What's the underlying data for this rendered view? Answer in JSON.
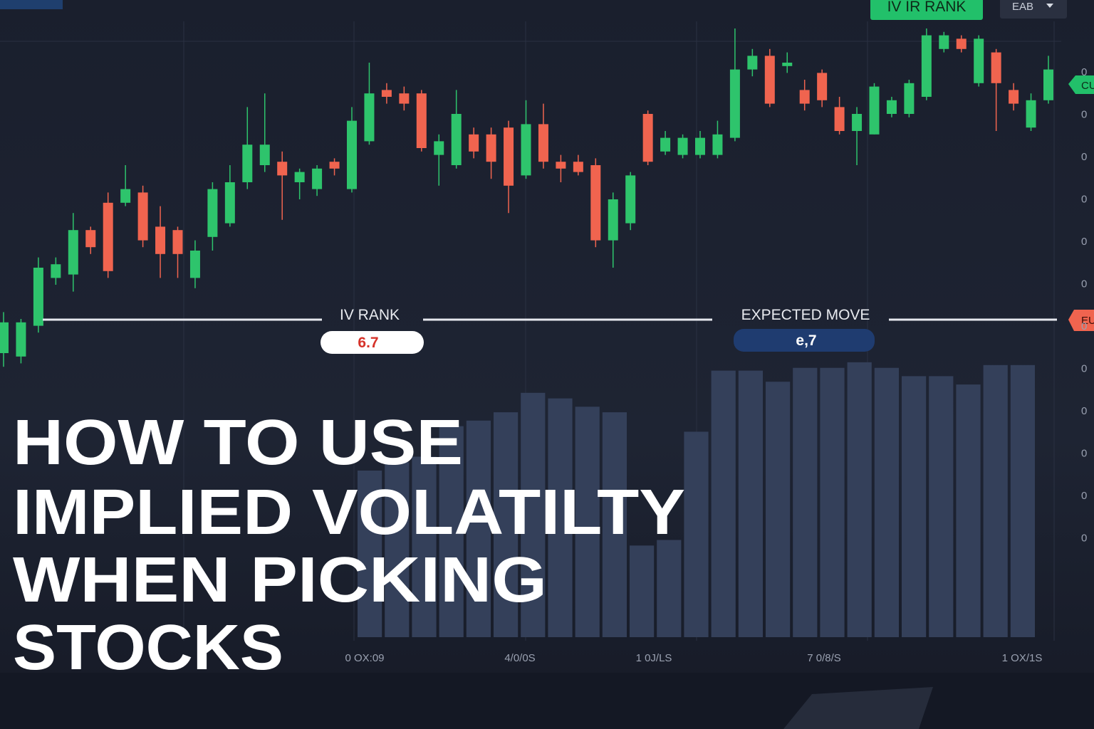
{
  "header": {
    "button": "IV IR RANK",
    "dropdown": "EAB"
  },
  "chart_data": [
    {
      "type": "candlestick",
      "up_color": "#2ec46c",
      "down_color": "#f0644f",
      "ylim": [
        0,
        100
      ],
      "open": [
        5,
        4,
        13,
        27,
        28,
        41,
        49,
        49,
        52,
        42,
        41,
        27,
        39,
        43,
        55,
        60,
        61,
        55,
        53,
        61,
        53,
        67,
        82,
        81,
        81,
        63,
        60,
        69,
        69,
        71,
        57,
        72,
        61,
        61,
        60,
        38,
        43,
        75,
        64,
        63,
        63,
        63,
        68,
        88,
        92,
        89,
        82,
        87,
        77,
        70,
        69,
        75,
        75,
        80,
        94,
        97,
        84,
        93,
        82,
        71,
        79
      ],
      "high": [
        17,
        15,
        33,
        33,
        46,
        42,
        52,
        60,
        54,
        48,
        42,
        38,
        55,
        60,
        77,
        81,
        64,
        59,
        60,
        62,
        77,
        90,
        84,
        83,
        82,
        69,
        82,
        71,
        71,
        73,
        79,
        78,
        63,
        63,
        62,
        52,
        58,
        76,
        70,
        69,
        70,
        73,
        100,
        94,
        94,
        93,
        85,
        88,
        80,
        77,
        84,
        80,
        85,
        100,
        99,
        98,
        98,
        94,
        84,
        81,
        92
      ],
      "low": [
        1,
        2,
        11,
        25,
        23,
        34,
        27,
        48,
        36,
        27,
        27,
        24,
        35,
        42,
        53,
        58,
        44,
        50,
        51,
        57,
        52,
        66,
        78,
        76,
        64,
        54,
        59,
        62,
        56,
        46,
        56,
        59,
        55,
        57,
        36,
        30,
        41,
        60,
        63,
        62,
        62,
        62,
        67,
        86,
        77,
        87,
        76,
        77,
        69,
        60,
        69,
        74,
        74,
        79,
        93,
        93,
        83,
        70,
        76,
        70,
        78
      ],
      "close": [
        14,
        14,
        30,
        31,
        41,
        36,
        29,
        53,
        38,
        34,
        34,
        35,
        53,
        55,
        66,
        66,
        57,
        58,
        59,
        59,
        73,
        81,
        80,
        78,
        65,
        67,
        75,
        64,
        61,
        54,
        72,
        61,
        59,
        58,
        38,
        50,
        57,
        61,
        68,
        68,
        68,
        69,
        88,
        92,
        78,
        90,
        78,
        79,
        70,
        75,
        83,
        79,
        84,
        98,
        98,
        94,
        97,
        84,
        78,
        79,
        88
      ]
    },
    {
      "type": "bar",
      "color": "#34405a",
      "ylim": [
        0,
        100
      ],
      "values": [
        60,
        63,
        65,
        76,
        78,
        81,
        88,
        86,
        83,
        81,
        33,
        35,
        74,
        96,
        96,
        92,
        97,
        97,
        99,
        97,
        94,
        94,
        91,
        98,
        98
      ]
    }
  ],
  "indicators": [
    {
      "label": "IV RANK",
      "value": "6.7"
    },
    {
      "label": "EXPECTED MOVE",
      "value": "e,7"
    }
  ],
  "title_lines": [
    "HOW TO USE",
    "IMPLIED VOLATILTY",
    "WHEN  PICKING",
    "STOCKS"
  ],
  "x_axis_labels": [
    "0 OX:09",
    "4/0/0S",
    "1 0J/LS",
    "7 0/8/S",
    "1 OX/1S"
  ],
  "y_axis_labels": [
    "0",
    "0",
    "0",
    "0",
    "0",
    "0",
    "0",
    "0",
    "0",
    "0",
    "0",
    "0"
  ],
  "price_tags": [
    "CU",
    "EU"
  ]
}
